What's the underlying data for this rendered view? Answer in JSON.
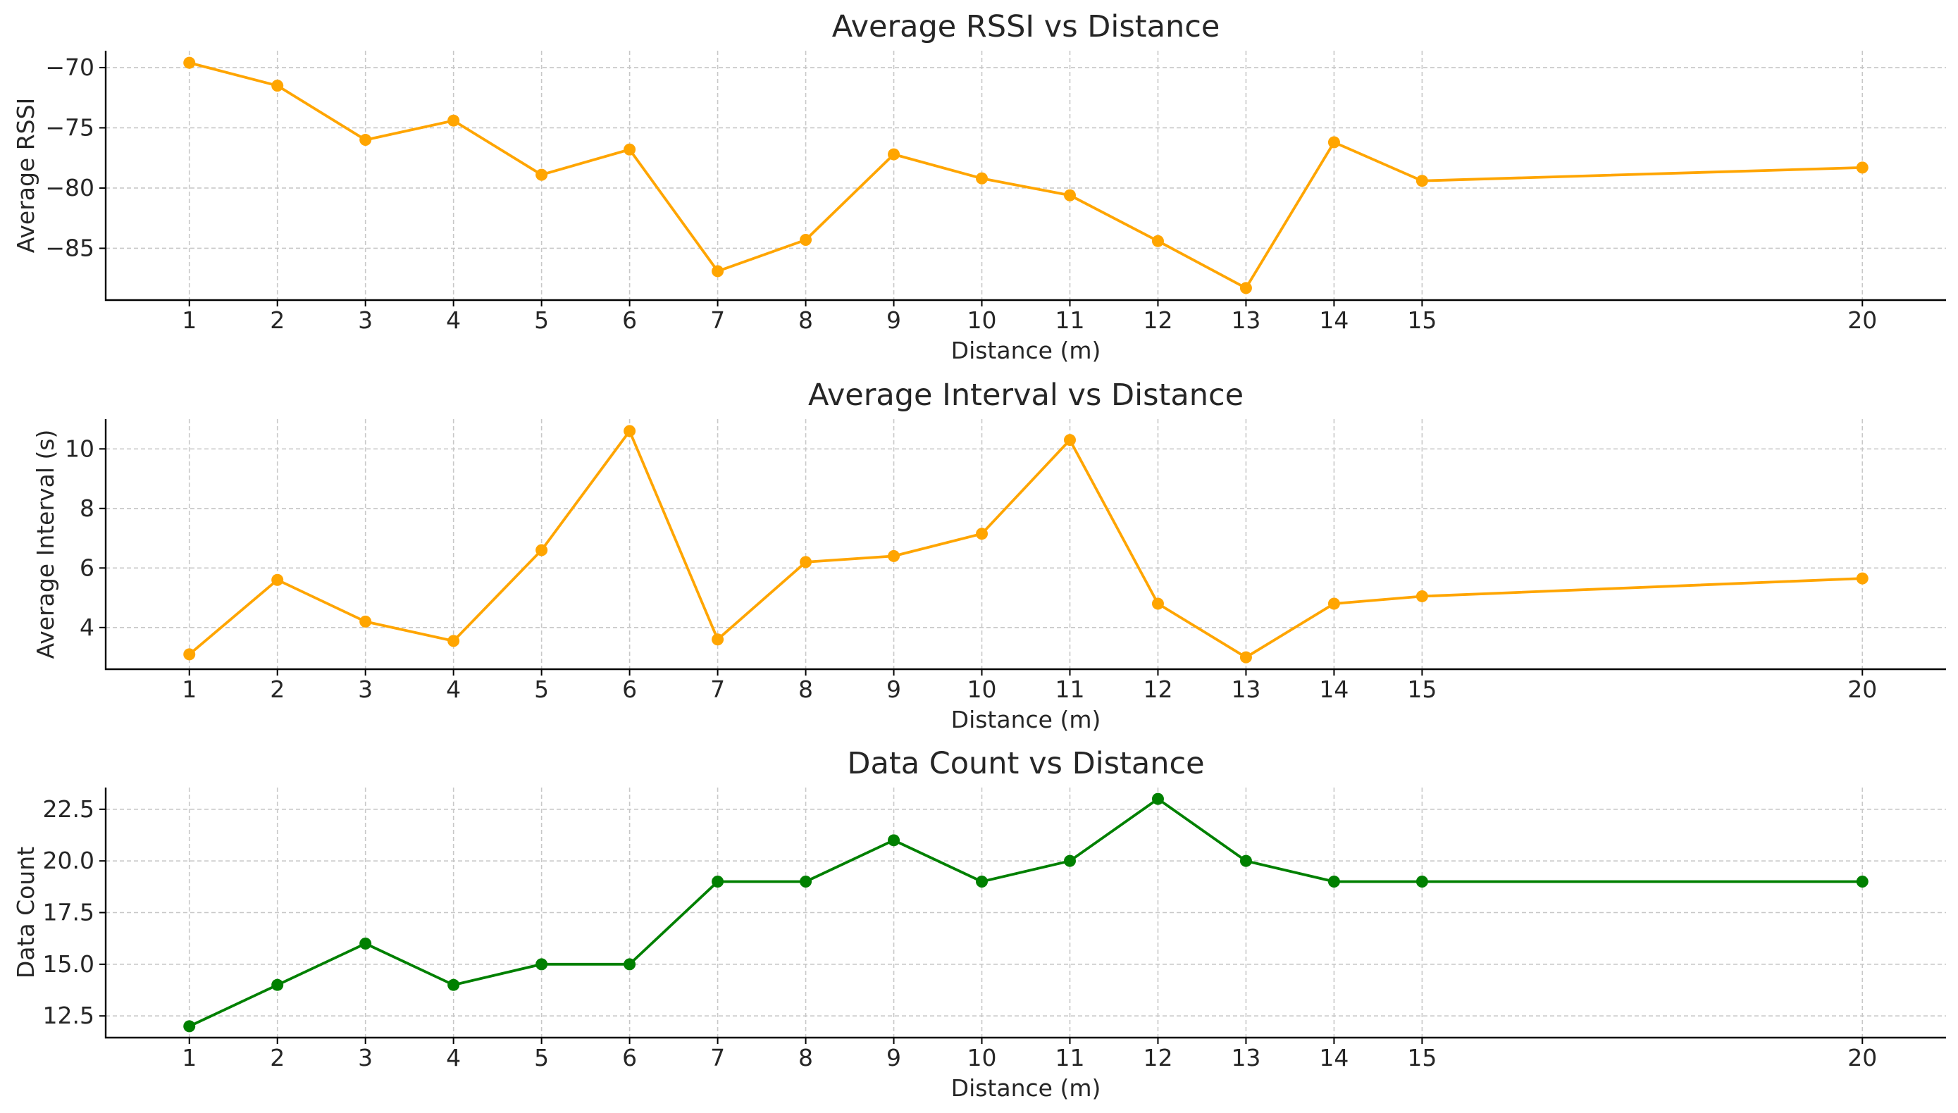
{
  "chart_data": [
    {
      "type": "line",
      "title": "Average RSSI vs Distance",
      "xlabel": "Distance (m)",
      "ylabel": "Average RSSI",
      "x": [
        1,
        2,
        3,
        4,
        5,
        6,
        7,
        8,
        9,
        10,
        11,
        12,
        13,
        14,
        15,
        20
      ],
      "series": [
        {
          "values": [
            -69.6,
            -71.5,
            -76.0,
            -74.4,
            -78.9,
            -76.8,
            -86.9,
            -84.3,
            -77.2,
            -79.2,
            -80.6,
            -84.4,
            -88.3,
            -76.2,
            -79.4,
            -78.3
          ],
          "color": "#FFA500"
        }
      ],
      "xlim": [
        0.05,
        20.95
      ],
      "ylim": [
        -89.3,
        -68.6
      ],
      "yticks": [
        -70,
        -75,
        -80,
        -85
      ],
      "ytick_labels": [
        "−70",
        "−75",
        "−80",
        "−85"
      ],
      "grid": true
    },
    {
      "type": "line",
      "title": "Average Interval vs Distance",
      "xlabel": "Distance (m)",
      "ylabel": "Average Interval (s)",
      "x": [
        1,
        2,
        3,
        4,
        5,
        6,
        7,
        8,
        9,
        10,
        11,
        12,
        13,
        14,
        15,
        20
      ],
      "series": [
        {
          "values": [
            3.1,
            5.6,
            4.2,
            3.55,
            6.6,
            10.6,
            3.6,
            6.2,
            6.4,
            7.15,
            10.3,
            4.8,
            3.0,
            4.8,
            5.05,
            5.65
          ],
          "color": "#FFA500"
        }
      ],
      "xlim": [
        0.05,
        20.95
      ],
      "ylim": [
        2.6,
        11.0
      ],
      "yticks": [
        4,
        6,
        8,
        10
      ],
      "ytick_labels": [
        "4",
        "6",
        "8",
        "10"
      ],
      "grid": true
    },
    {
      "type": "line",
      "title": "Data Count vs Distance",
      "xlabel": "Distance (m)",
      "ylabel": "Data Count",
      "x": [
        1,
        2,
        3,
        4,
        5,
        6,
        7,
        8,
        9,
        10,
        11,
        12,
        13,
        14,
        15,
        20
      ],
      "series": [
        {
          "values": [
            12,
            14,
            16,
            14,
            15,
            15,
            19,
            19,
            21,
            19,
            20,
            23,
            20,
            19,
            19,
            19
          ],
          "color": "#008000"
        }
      ],
      "xlim": [
        0.05,
        20.95
      ],
      "ylim": [
        11.45,
        23.55
      ],
      "yticks": [
        12.5,
        15.0,
        17.5,
        20.0,
        22.5
      ],
      "ytick_labels": [
        "12.5",
        "15.0",
        "17.5",
        "20.0",
        "22.5"
      ],
      "grid": true
    }
  ]
}
